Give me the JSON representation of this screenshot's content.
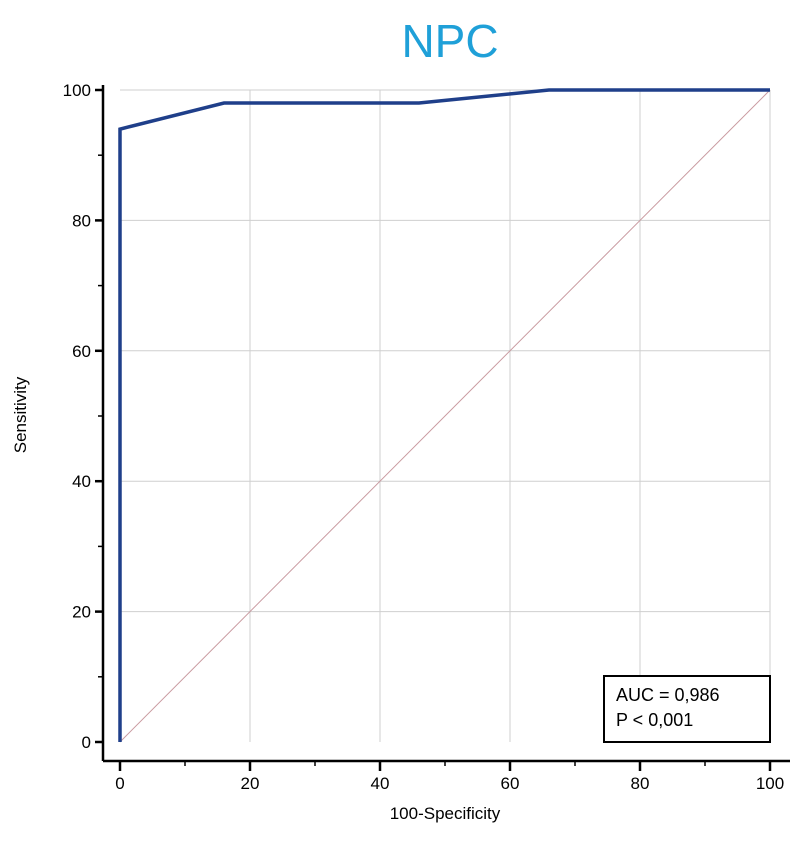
{
  "chart_data": {
    "type": "line",
    "title": "NPC",
    "xlabel": "100-Specificity",
    "ylabel": "Sensitivity",
    "xlim": [
      0,
      100
    ],
    "ylim": [
      0,
      100
    ],
    "x_ticks": [
      0,
      20,
      40,
      60,
      80,
      100
    ],
    "y_ticks": [
      0,
      20,
      40,
      60,
      80,
      100
    ],
    "grid": true,
    "series": [
      {
        "name": "",
        "color": "#1f3f8a",
        "x": [
          0,
          0,
          16,
          46,
          66,
          100
        ],
        "y": [
          0,
          94,
          98,
          98,
          100,
          100
        ]
      }
    ],
    "reference_line": {
      "x": [
        0,
        100
      ],
      "y": [
        0,
        100
      ],
      "color": "#c99aa0"
    },
    "annotation": {
      "lines": [
        "AUC = 0,986",
        "P < 0,001"
      ],
      "placement": "bottom-right"
    }
  }
}
